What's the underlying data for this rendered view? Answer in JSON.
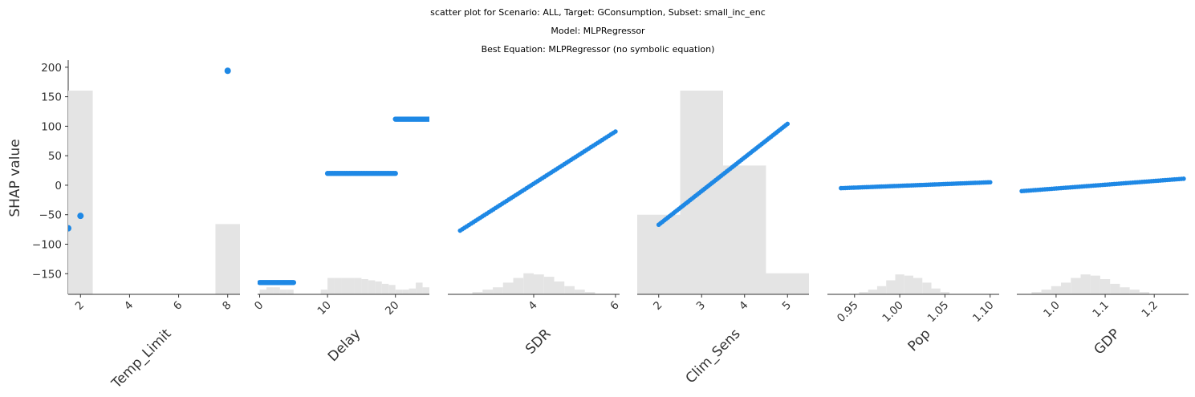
{
  "figure": {
    "title_lines": [
      "scatter plot for Scenario: ALL, Target: GConsumption, Subset: small_inc_enc",
      "Model: MLPRegressor",
      "Best Equation: MLPRegressor (no symbolic equation)"
    ],
    "ylabel": "SHAP value",
    "yticks": [
      200,
      150,
      100,
      50,
      0,
      -50,
      -100,
      -150
    ],
    "ylim": [
      -185,
      212
    ],
    "point_color": "#1e88e5",
    "hist_color": "#e4e4e4",
    "grid": false
  },
  "chart_data": [
    {
      "type": "scatter",
      "xlabel": "Temp_Limit",
      "xlim": [
        1.5,
        8.5
      ],
      "xticks": [
        2,
        4,
        6,
        8
      ],
      "tick_rotation": -45,
      "points": [
        [
          1.5,
          -73
        ],
        [
          2,
          -52
        ],
        [
          8,
          194
        ]
      ],
      "histogram": {
        "bins": [
          [
            1.5,
            2.5,
            0.87
          ],
          [
            7.5,
            8.5,
            0.3
          ]
        ]
      }
    },
    {
      "type": "scatter",
      "xlabel": "Delay",
      "xlim": [
        -0.3,
        25
      ],
      "xticks": [
        0,
        10,
        20
      ],
      "tick_rotation": -45,
      "segments": [
        {
          "x_range": [
            0,
            5
          ],
          "y": -165
        },
        {
          "x_range": [
            10,
            20
          ],
          "y": 20
        },
        {
          "x_range": [
            20,
            25
          ],
          "y": 112
        }
      ],
      "histogram": {
        "bins": [
          [
            0,
            1,
            0.02
          ],
          [
            1,
            2,
            0.03
          ],
          [
            2,
            3,
            0.03
          ],
          [
            3,
            4,
            0.02
          ],
          [
            4,
            5,
            0.02
          ],
          [
            9,
            10,
            0.02
          ],
          [
            10,
            11,
            0.07
          ],
          [
            11,
            12,
            0.07
          ],
          [
            12,
            13,
            0.07
          ],
          [
            13,
            14,
            0.07
          ],
          [
            14,
            15,
            0.07
          ],
          [
            15,
            16,
            0.065
          ],
          [
            16,
            17,
            0.06
          ],
          [
            17,
            18,
            0.055
          ],
          [
            18,
            19,
            0.045
          ],
          [
            19,
            20,
            0.04
          ],
          [
            20,
            21,
            0.02
          ],
          [
            21,
            22,
            0.02
          ],
          [
            22,
            23,
            0.025
          ],
          [
            23,
            24,
            0.05
          ],
          [
            24,
            25,
            0.03
          ]
        ]
      }
    },
    {
      "type": "scatter",
      "xlabel": "SDR",
      "xlim": [
        1.9,
        6.1
      ],
      "xticks": [
        4,
        6
      ],
      "tick_rotation": -45,
      "line": {
        "x_range": [
          2.2,
          6.0
        ],
        "y_range": [
          -77,
          91
        ]
      },
      "histogram": {
        "bins": [
          [
            2.5,
            2.75,
            0.01
          ],
          [
            2.75,
            3.0,
            0.02
          ],
          [
            3.0,
            3.25,
            0.03
          ],
          [
            3.25,
            3.5,
            0.05
          ],
          [
            3.5,
            3.75,
            0.07
          ],
          [
            3.75,
            4.0,
            0.09
          ],
          [
            4.0,
            4.25,
            0.085
          ],
          [
            4.25,
            4.5,
            0.075
          ],
          [
            4.5,
            4.75,
            0.055
          ],
          [
            4.75,
            5.0,
            0.035
          ],
          [
            5.0,
            5.25,
            0.02
          ],
          [
            5.25,
            5.5,
            0.01
          ]
        ]
      }
    },
    {
      "type": "scatter",
      "xlabel": "Clim_Sens",
      "xlim": [
        1.5,
        5.5
      ],
      "xticks": [
        2,
        3,
        4,
        5
      ],
      "tick_rotation": -45,
      "line": {
        "x_range": [
          2.0,
          5.0
        ],
        "y_range": [
          -67,
          104
        ]
      },
      "histogram": {
        "bins": [
          [
            1.5,
            2.5,
            0.34
          ],
          [
            2.5,
            3.5,
            0.87
          ],
          [
            3.5,
            4.5,
            0.55
          ],
          [
            4.5,
            5.5,
            0.09
          ]
        ]
      }
    },
    {
      "type": "scatter",
      "xlabel": "Pop",
      "xlim": [
        0.92,
        1.11
      ],
      "xticks": [
        "0.95",
        "1.00",
        "1.05",
        "1.10"
      ],
      "tick_values": [
        0.95,
        1.0,
        1.05,
        1.1
      ],
      "tick_rotation": -45,
      "line": {
        "x_range": [
          0.935,
          1.1
        ],
        "y_range": [
          -5,
          5
        ]
      },
      "histogram": {
        "bins": [
          [
            0.955,
            0.965,
            0.01
          ],
          [
            0.965,
            0.975,
            0.02
          ],
          [
            0.975,
            0.985,
            0.035
          ],
          [
            0.985,
            0.995,
            0.06
          ],
          [
            0.995,
            1.005,
            0.085
          ],
          [
            1.005,
            1.015,
            0.08
          ],
          [
            1.015,
            1.025,
            0.07
          ],
          [
            1.025,
            1.035,
            0.05
          ],
          [
            1.035,
            1.045,
            0.025
          ],
          [
            1.045,
            1.055,
            0.01
          ]
        ]
      }
    },
    {
      "type": "scatter",
      "xlabel": "GDP",
      "xlim": [
        0.92,
        1.27
      ],
      "xticks": [
        "1.0",
        "1.1",
        "1.2"
      ],
      "tick_values": [
        1.0,
        1.1,
        1.2
      ],
      "tick_rotation": -45,
      "line": {
        "x_range": [
          0.93,
          1.26
        ],
        "y_range": [
          -10,
          11
        ]
      },
      "histogram": {
        "bins": [
          [
            0.95,
            0.97,
            0.01
          ],
          [
            0.97,
            0.99,
            0.02
          ],
          [
            0.99,
            1.01,
            0.035
          ],
          [
            1.01,
            1.03,
            0.05
          ],
          [
            1.03,
            1.05,
            0.07
          ],
          [
            1.05,
            1.07,
            0.085
          ],
          [
            1.07,
            1.09,
            0.08
          ],
          [
            1.09,
            1.11,
            0.065
          ],
          [
            1.11,
            1.13,
            0.045
          ],
          [
            1.13,
            1.15,
            0.03
          ],
          [
            1.15,
            1.17,
            0.02
          ],
          [
            1.17,
            1.19,
            0.01
          ]
        ]
      }
    }
  ]
}
